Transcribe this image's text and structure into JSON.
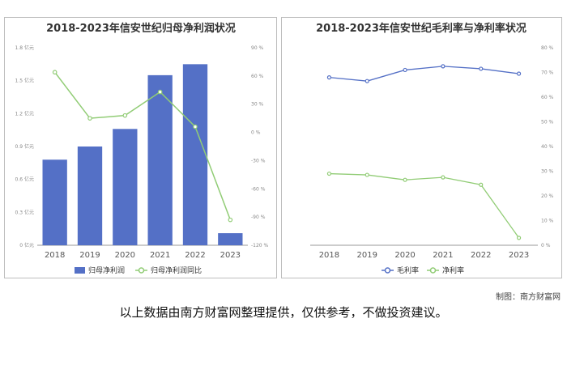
{
  "footer": {
    "credit": "制图：南方财富网",
    "disclaimer": "以上数据由南方财富网整理提供，仅供参考，不做投资建议。"
  },
  "chart_data": [
    {
      "type": "bar",
      "title": "2018-2023年信安世纪归母净利润状况",
      "categories": [
        "2018",
        "2019",
        "2020",
        "2021",
        "2022",
        "2023"
      ],
      "series": [
        {
          "name": "归母净利润",
          "type": "bar",
          "axis": "left",
          "color": "#5470c6",
          "values": [
            0.78,
            0.9,
            1.06,
            1.55,
            1.65,
            0.11
          ]
        },
        {
          "name": "归母净利润同比",
          "type": "line",
          "axis": "right",
          "color": "#91cc75",
          "values": [
            64,
            15,
            18,
            43,
            6,
            -93
          ]
        }
      ],
      "y_left": {
        "ylim": [
          0,
          1.8
        ],
        "ticks": [
          0,
          0.3,
          0.6,
          0.9,
          1.2,
          1.5,
          1.8
        ],
        "tick_labels": [
          "0 亿元",
          "0.3 亿元",
          "0.6 亿元",
          "0.9 亿元",
          "1.2 亿元",
          "1.5 亿元",
          "1.8 亿元"
        ]
      },
      "y_right": {
        "ylim": [
          -120,
          90
        ],
        "ticks": [
          -120,
          -90,
          -60,
          -30,
          0,
          30,
          60,
          90
        ],
        "tick_labels": [
          "-120 %",
          "-90 %",
          "-60 %",
          "-30 %",
          "0 %",
          "30 %",
          "60 %",
          "90 %"
        ]
      },
      "grid": false,
      "legend": "bottom"
    },
    {
      "type": "line",
      "title": "2018-2023年信安世纪毛利率与净利率状况",
      "categories": [
        "2018",
        "2019",
        "2020",
        "2021",
        "2022",
        "2023"
      ],
      "series": [
        {
          "name": "毛利率",
          "color": "#5470c6",
          "values": [
            68,
            66.5,
            71,
            72.5,
            71.5,
            69.5
          ]
        },
        {
          "name": "净利率",
          "color": "#91cc75",
          "values": [
            29,
            28.5,
            26.5,
            27.5,
            24.5,
            3
          ]
        }
      ],
      "y_right": {
        "ylim": [
          0,
          80
        ],
        "ticks": [
          0,
          10,
          20,
          30,
          40,
          50,
          60,
          70,
          80
        ],
        "tick_labels": [
          "0 %",
          "10 %",
          "20 %",
          "30 %",
          "40 %",
          "50 %",
          "60 %",
          "70 %",
          "80 %"
        ]
      },
      "grid": false,
      "legend": "bottom"
    }
  ]
}
